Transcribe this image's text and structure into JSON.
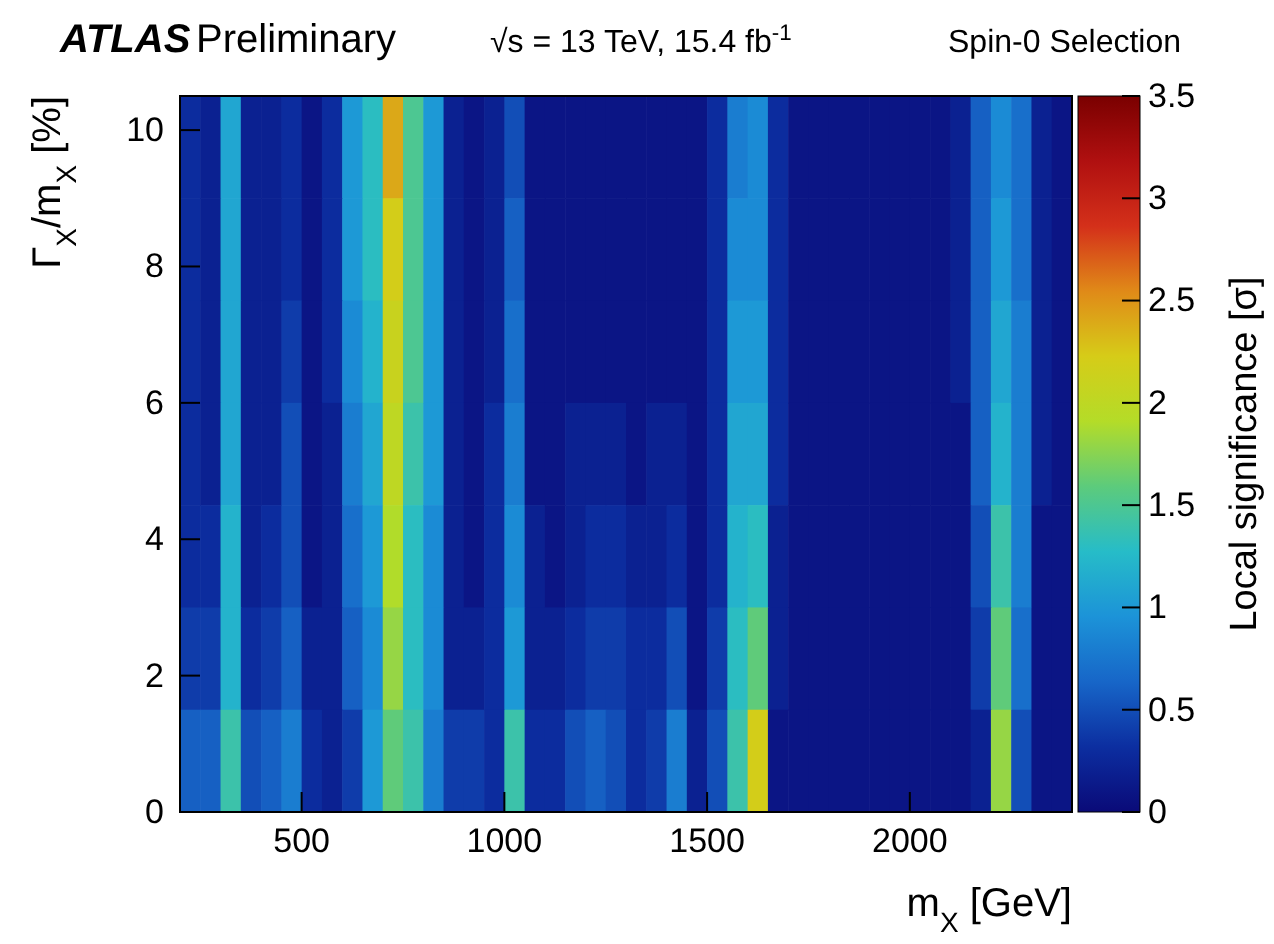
{
  "chart_data": {
    "type": "heatmap",
    "annotations": [
      "ATLAS",
      "Preliminary",
      "√s = 13 TeV, 15.4 fb$^{-1}$",
      "Spin-0 Selection"
    ],
    "xlabel": "m$_{X}$ [GeV]",
    "ylabel": "Γ$_{X}$/m$_{X}$ [%]",
    "clabel": "Local significance [σ]",
    "x": [
      225,
      275,
      325,
      375,
      425,
      475,
      525,
      575,
      625,
      675,
      725,
      775,
      825,
      875,
      925,
      975,
      1025,
      1075,
      1125,
      1175,
      1225,
      1275,
      1325,
      1375,
      1425,
      1475,
      1525,
      1575,
      1625,
      1675,
      1725,
      1775,
      1825,
      1875,
      1925,
      1975,
      2025,
      2075,
      2125,
      2175,
      2225,
      2275,
      2325,
      2375
    ],
    "y": [
      9.75,
      8.25,
      6.75,
      5.25,
      3.75,
      2.25,
      0.75
    ],
    "cells": [
      [
        0.3,
        0.2,
        1.1,
        0.2,
        0.2,
        0.3,
        0.1,
        0.3,
        1.0,
        1.3,
        2.4,
        1.5,
        1.0,
        0.2,
        0.1,
        0.2,
        0.5,
        0.1,
        0.1,
        0.1,
        0.1,
        0.1,
        0.1,
        0.1,
        0.1,
        0.1,
        0.3,
        0.8,
        0.9,
        0.3,
        0.1,
        0.1,
        0.1,
        0.1,
        0.1,
        0.1,
        0.1,
        0.1,
        0.2,
        0.6,
        0.9,
        0.7,
        0.2,
        0.1
      ],
      [
        0.3,
        0.2,
        1.1,
        0.2,
        0.2,
        0.3,
        0.1,
        0.3,
        1.0,
        1.3,
        2.2,
        1.5,
        1.0,
        0.2,
        0.1,
        0.2,
        0.6,
        0.1,
        0.1,
        0.1,
        0.1,
        0.1,
        0.1,
        0.1,
        0.1,
        0.1,
        0.3,
        0.9,
        0.9,
        0.3,
        0.1,
        0.1,
        0.1,
        0.1,
        0.1,
        0.1,
        0.1,
        0.1,
        0.2,
        0.6,
        1.0,
        0.7,
        0.2,
        0.1
      ],
      [
        0.3,
        0.2,
        1.1,
        0.2,
        0.2,
        0.4,
        0.1,
        0.3,
        0.9,
        1.2,
        2.1,
        1.5,
        1.0,
        0.2,
        0.1,
        0.2,
        0.7,
        0.1,
        0.1,
        0.1,
        0.1,
        0.1,
        0.1,
        0.1,
        0.1,
        0.1,
        0.3,
        1.0,
        1.0,
        0.3,
        0.1,
        0.1,
        0.1,
        0.1,
        0.1,
        0.1,
        0.1,
        0.1,
        0.2,
        0.6,
        1.1,
        0.8,
        0.2,
        0.1
      ],
      [
        0.3,
        0.2,
        1.1,
        0.2,
        0.2,
        0.5,
        0.1,
        0.2,
        0.8,
        1.1,
        2.0,
        1.4,
        1.0,
        0.2,
        0.1,
        0.3,
        0.8,
        0.1,
        0.1,
        0.2,
        0.2,
        0.2,
        0.1,
        0.2,
        0.2,
        0.1,
        0.3,
        1.1,
        1.1,
        0.3,
        0.1,
        0.1,
        0.1,
        0.1,
        0.1,
        0.1,
        0.1,
        0.1,
        0.1,
        0.6,
        1.2,
        0.8,
        0.2,
        0.1
      ],
      [
        0.3,
        0.3,
        1.2,
        0.2,
        0.3,
        0.5,
        0.1,
        0.2,
        0.7,
        1.0,
        1.9,
        1.3,
        0.9,
        0.2,
        0.1,
        0.3,
        0.9,
        0.2,
        0.1,
        0.2,
        0.3,
        0.3,
        0.2,
        0.2,
        0.3,
        0.1,
        0.3,
        1.2,
        1.3,
        0.2,
        0.1,
        0.1,
        0.1,
        0.1,
        0.1,
        0.1,
        0.1,
        0.1,
        0.1,
        0.5,
        1.4,
        0.8,
        0.1,
        0.1
      ],
      [
        0.4,
        0.4,
        1.2,
        0.3,
        0.4,
        0.6,
        0.2,
        0.2,
        0.6,
        0.9,
        1.8,
        1.3,
        0.9,
        0.2,
        0.2,
        0.3,
        1.0,
        0.2,
        0.2,
        0.3,
        0.4,
        0.4,
        0.3,
        0.3,
        0.5,
        0.1,
        0.4,
        1.3,
        1.6,
        0.2,
        0.1,
        0.1,
        0.1,
        0.1,
        0.1,
        0.1,
        0.1,
        0.1,
        0.1,
        0.4,
        1.6,
        0.7,
        0.1,
        0.1
      ],
      [
        0.6,
        0.6,
        1.4,
        0.5,
        0.6,
        0.8,
        0.3,
        0.2,
        0.4,
        1.0,
        1.6,
        1.4,
        0.8,
        0.4,
        0.4,
        0.3,
        1.4,
        0.3,
        0.3,
        0.5,
        0.6,
        0.5,
        0.3,
        0.4,
        0.8,
        0.2,
        0.5,
        1.4,
        2.2,
        0.1,
        0.1,
        0.1,
        0.1,
        0.1,
        0.1,
        0.1,
        0.1,
        0.1,
        0.1,
        0.2,
        1.8,
        0.5,
        0.1,
        0.1
      ]
    ],
    "xlim": [
      200,
      2400
    ],
    "xticks": [
      500,
      1000,
      1500,
      2000
    ],
    "ylim": [
      0,
      10.5
    ],
    "yticks": [
      0,
      2,
      4,
      6,
      8,
      10
    ],
    "clim": [
      0,
      3.5
    ],
    "cticks": [
      0,
      0.5,
      1,
      1.5,
      2,
      2.5,
      3,
      3.5
    ]
  }
}
